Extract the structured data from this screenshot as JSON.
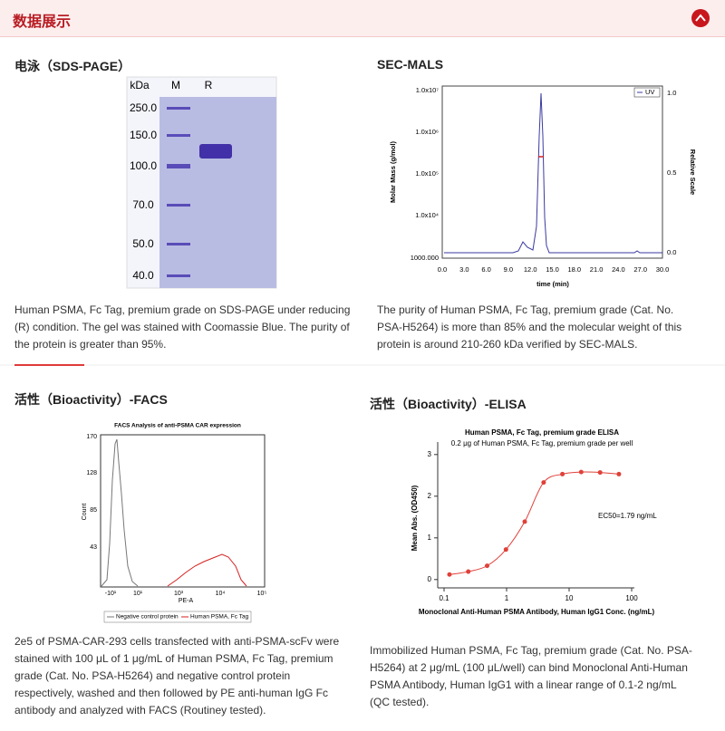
{
  "header": {
    "title": "数据展示"
  },
  "panels": [
    {
      "heading": "电泳（SDS-PAGE）",
      "caption": "Human PSMA, Fc Tag, premium grade on SDS-PAGE under reducing (R) condition. The gel was stained with Coomassie Blue. The purity of the protein is greater than 95%.",
      "figure": {
        "unit": "kDa",
        "lanes": [
          "M",
          "R"
        ],
        "markers": [
          "250.0",
          "150.0",
          "100.0",
          "70.0",
          "50.0",
          "40.0"
        ]
      }
    },
    {
      "heading": "SEC-MALS",
      "caption": "The purity of Human PSMA, Fc Tag, premium grade (Cat. No. PSA-H5264) is more than 85% and the molecular weight of this protein is around 210-260 kDa verified by SEC-MALS.",
      "figure": {
        "ylabel": "Molar Mass (g/mol)",
        "y2label": "Relative Scale",
        "xlabel": "time (min)",
        "legend": "UV",
        "yticks": [
          "1.0x10⁷",
          "1.0x10⁶",
          "1.0x10⁵",
          "1.0x10⁴",
          "1000.000"
        ],
        "y2ticks": [
          "1.0",
          "0.5",
          "0.0"
        ],
        "xticks": [
          "0.0",
          "3.0",
          "6.0",
          "9.0",
          "12.0",
          "15.0",
          "18.0",
          "21.0",
          "24.0",
          "27.0",
          "30.0"
        ]
      }
    },
    {
      "heading": "活性（Bioactivity）-FACS",
      "caption": "2e5 of PSMA-CAR-293 cells transfected with anti-PSMA-scFv were stained with 100 μL of 1 μg/mL of Human PSMA, Fc Tag, premium grade (Cat. No. PSA-H5264) and negative control protein respectively, washed and then followed by PE anti-human IgG Fc antibody and analyzed with FACS (Routiney tested).",
      "figure": {
        "title": "FACS Analysis of anti-PSMA CAR expression",
        "ylabel": "Count",
        "xlabel": "PE-A",
        "yticks": [
          "170",
          "128",
          "85",
          "43"
        ],
        "xticks": [
          "-10¹",
          "10¹",
          "10³",
          "10⁴",
          "10⁵"
        ],
        "legend": [
          "Negative control protein",
          "Human PSMA, Fc Tag"
        ]
      }
    },
    {
      "heading": "活性（Bioactivity）-ELISA",
      "caption": "Immobilized Human PSMA, Fc Tag, premium grade (Cat. No. PSA-H5264) at 2 μg/mL (100 μL/well) can bind Monoclonal Anti-Human PSMA Antibody, Human IgG1 with a linear range of 0.1-2 ng/mL (QC tested).",
      "figure": {
        "type": "scatter",
        "title": "Human PSMA, Fc Tag, premium grade ELISA",
        "subtitle": "0.2 μg of Human PSMA, Fc Tag, premium grade per well",
        "ylabel": "Mean Abs. (OD450)",
        "xlabel": "Monoclonal Anti-Human PSMA Antibody, Human IgG1 Conc. (ng/mL)",
        "annotation": "EC50=1.79 ng/mL",
        "xlog": true,
        "xlim": [
          0.1,
          100
        ],
        "xticks": [
          0.1,
          1,
          10,
          100
        ],
        "ylim": [
          -0.2,
          3.3
        ],
        "yticks": [
          0,
          1,
          2,
          3
        ],
        "color": "#e0403a",
        "x": [
          0.122,
          0.244,
          0.488,
          0.977,
          1.95,
          3.91,
          7.81,
          15.6,
          31.3,
          62.5
        ],
        "values": [
          0.12,
          0.19,
          0.33,
          0.72,
          1.39,
          2.33,
          2.53,
          2.58,
          2.57,
          2.53
        ]
      }
    }
  ]
}
